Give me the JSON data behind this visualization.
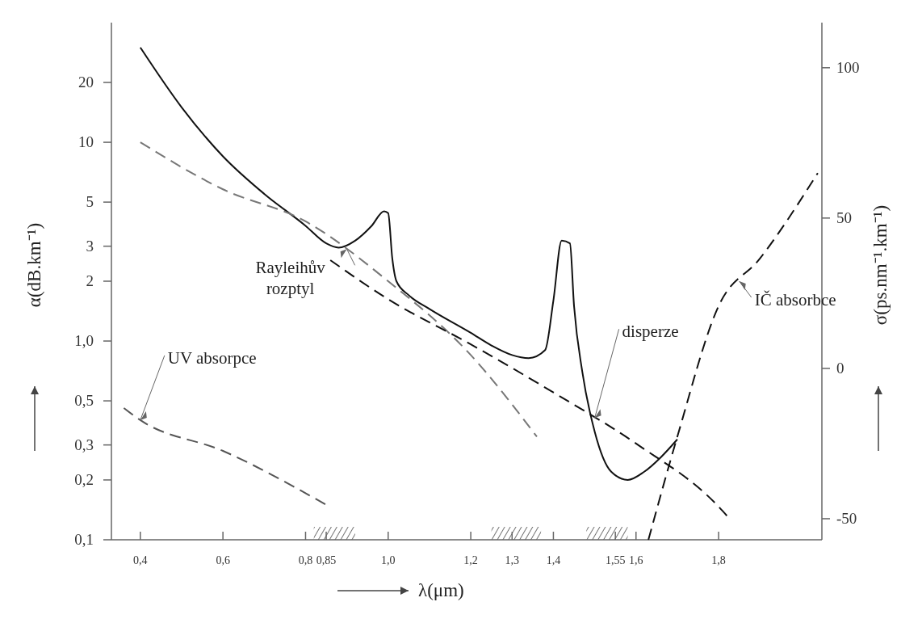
{
  "chart_data": {
    "type": "line",
    "xlabel": "λ(μm)",
    "ylabel": "α(dB.km⁻¹)",
    "y2label": "σ(ps.nm⁻¹.km⁻¹)",
    "xlim": [
      0.33,
      2.05
    ],
    "ylim": [
      0.1,
      40
    ],
    "y2lim": [
      -57,
      115
    ],
    "log": "y",
    "grid": false,
    "marker": "none",
    "xticks": [
      {
        "value": 0.4,
        "label": "0,4"
      },
      {
        "value": 0.6,
        "label": "0,6"
      },
      {
        "value": 0.8,
        "label": "0,8"
      },
      {
        "value": 0.85,
        "label": "0,85"
      },
      {
        "value": 1.0,
        "label": "1,0"
      },
      {
        "value": 1.2,
        "label": "1,2"
      },
      {
        "value": 1.3,
        "label": "1,3"
      },
      {
        "value": 1.4,
        "label": "1,4"
      },
      {
        "value": 1.55,
        "label": "1,55"
      },
      {
        "value": 1.6,
        "label": "1,6"
      },
      {
        "value": 1.8,
        "label": "1,8"
      }
    ],
    "yticks": [
      {
        "value": 0.1,
        "label": "0,1"
      },
      {
        "value": 0.2,
        "label": "0,2"
      },
      {
        "value": 0.3,
        "label": "0,3"
      },
      {
        "value": 0.5,
        "label": "0,5"
      },
      {
        "value": 1.0,
        "label": "1,0"
      },
      2,
      3,
      5,
      10,
      20
    ],
    "y2ticks": [
      -50,
      0,
      50,
      100
    ],
    "series": [
      {
        "color": "#111111",
        "line_style": "solid",
        "x": [
          0.4,
          0.5,
          0.6,
          0.7,
          0.8,
          0.85,
          0.88,
          0.92,
          0.96,
          0.99,
          1.0,
          1.01,
          1.02,
          1.05,
          1.1,
          1.2,
          1.25,
          1.3,
          1.34,
          1.38,
          1.4,
          1.42,
          1.44,
          1.45,
          1.47,
          1.5,
          1.54,
          1.58,
          1.62,
          1.66,
          1.7
        ],
        "values": [
          30,
          15,
          8.5,
          5.5,
          3.8,
          3.1,
          2.95,
          3.2,
          3.8,
          4.5,
          4.4,
          2.6,
          2.0,
          1.7,
          1.45,
          1.1,
          0.95,
          0.85,
          0.82,
          0.9,
          1.6,
          3.2,
          3.1,
          1.5,
          0.7,
          0.35,
          0.22,
          0.2,
          0.22,
          0.26,
          0.32
        ]
      },
      {
        "color": "#777777",
        "line_style": "dashed",
        "x": [
          0.4,
          0.6,
          0.8,
          1.0,
          1.2,
          1.36
        ],
        "values": [
          10,
          5.8,
          4,
          2,
          0.85,
          0.33
        ]
      },
      {
        "color": "#555555",
        "line_style": "dashed",
        "x": [
          0.36,
          0.4,
          0.6,
          0.85
        ],
        "values": [
          0.46,
          0.4,
          0.28,
          0.15
        ]
      },
      {
        "color": "#111111",
        "line_style": "dashed",
        "axis": "y2",
        "x": [
          0.86,
          1.0,
          1.2,
          1.4,
          1.6,
          1.8,
          1.82
        ],
        "values": [
          36,
          23,
          8,
          -8,
          -25,
          -46,
          -49
        ]
      },
      {
        "color": "#111111",
        "line_style": "dashed",
        "x": [
          1.63,
          1.7,
          1.8,
          1.9,
          2.04
        ],
        "values": [
          0.1,
          0.33,
          1.5,
          2.6,
          7
        ]
      }
    ],
    "bands": [
      {
        "axis": "x",
        "from": 0.82,
        "to": 0.92
      },
      {
        "axis": "x",
        "from": 1.25,
        "to": 1.37
      },
      {
        "axis": "x",
        "from": 1.48,
        "to": 1.58
      }
    ],
    "annotations": [
      {
        "text": "Rayleihův rozptyl",
        "x": 0.9,
        "y": 2.9
      },
      {
        "text": "UV absorpce",
        "x": 0.4,
        "y": 0.4
      },
      {
        "text": "disperze",
        "x": 1.5,
        "y": 0.41
      },
      {
        "text": "IČ absorbce",
        "x": 1.85,
        "y": 2
      }
    ]
  }
}
